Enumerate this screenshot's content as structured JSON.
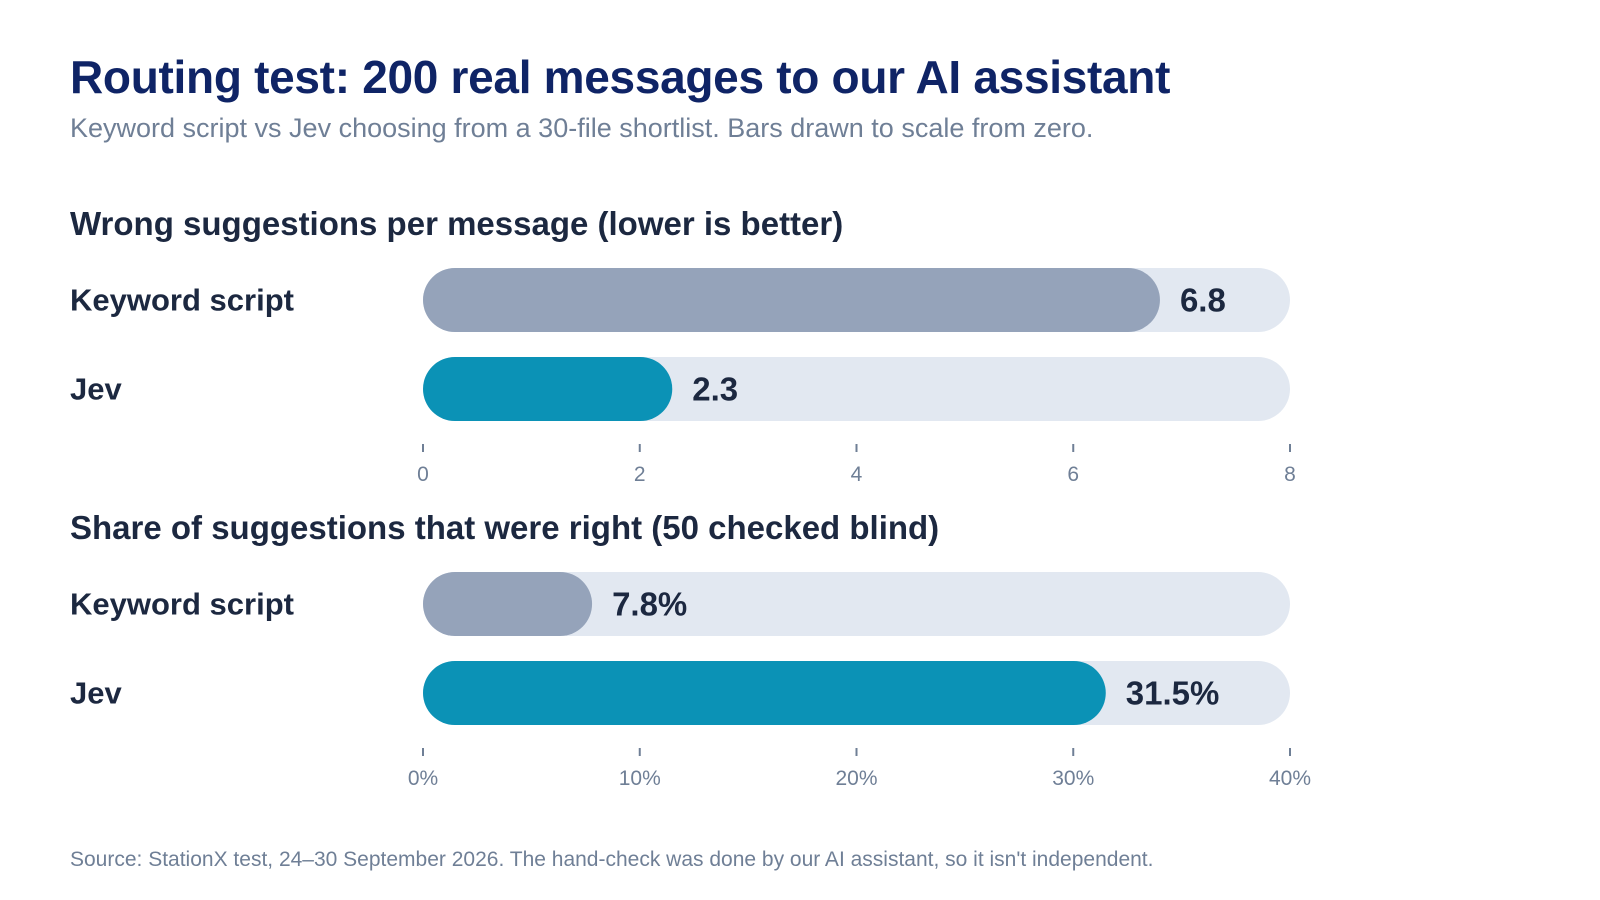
{
  "title": "Routing test: 200 real messages to our AI assistant",
  "subtitle": "Keyword script vs Jev choosing from a 30-file shortlist. Bars drawn to scale from zero.",
  "footer": "Source: StationX test, 24–30 September 2026. The hand-check was done by our AI assistant, so it isn't independent.",
  "colors": {
    "keyword_bar": "#95a3ba",
    "jev_bar": "#0b92b6",
    "track": "#e2e8f1",
    "title": "#0f2466",
    "text": "#1c2840",
    "muted": "#6f7f96"
  },
  "chart_data": [
    {
      "type": "bar",
      "orientation": "horizontal",
      "title": "Wrong suggestions per message (lower is better)",
      "categories": [
        "Keyword script",
        "Jev"
      ],
      "values": [
        6.8,
        2.3
      ],
      "value_labels": [
        "6.8",
        "2.3"
      ],
      "xlim": [
        0,
        8
      ],
      "ticks": [
        0,
        2,
        4,
        6,
        8
      ],
      "tick_labels": [
        "0",
        "2",
        "4",
        "6",
        "8"
      ],
      "grid": false
    },
    {
      "type": "bar",
      "orientation": "horizontal",
      "title": "Share of suggestions that were right (50 checked blind)",
      "categories": [
        "Keyword script",
        "Jev"
      ],
      "values": [
        7.8,
        31.5
      ],
      "value_labels": [
        "7.8%",
        "31.5%"
      ],
      "xlim": [
        0,
        40
      ],
      "ticks": [
        0,
        10,
        20,
        30,
        40
      ],
      "tick_labels": [
        "0%",
        "10%",
        "20%",
        "30%",
        "40%"
      ],
      "grid": false
    }
  ]
}
